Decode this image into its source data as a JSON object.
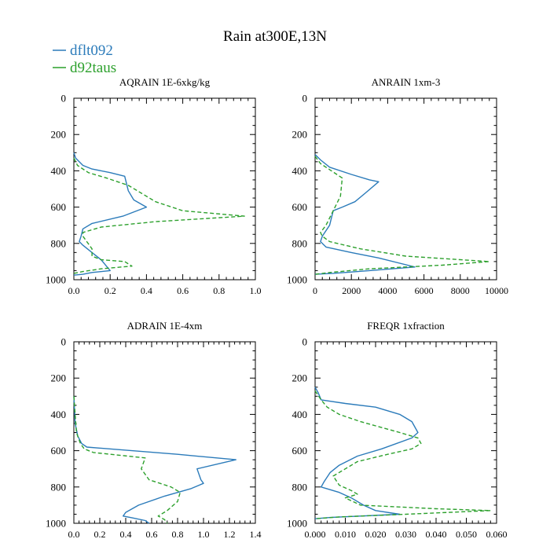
{
  "title": "Rain at300E,13N",
  "legend": [
    {
      "label": "dflt092",
      "color": "#2b7bba",
      "dash": "solid"
    },
    {
      "label": "d92taus",
      "color": "#2ca02c",
      "dash": "dashed"
    }
  ],
  "chart_data": [
    {
      "type": "line",
      "title": "AQRAIN  1E-6xkg/kg",
      "xlim": [
        0,
        1.0
      ],
      "ylim": [
        1000,
        0
      ],
      "xticks": [
        0.0,
        0.2,
        0.4,
        0.6,
        0.8,
        1.0
      ],
      "xtick_labels": [
        "0.0",
        "0.2",
        "0.4",
        "0.6",
        "0.8",
        "1.0"
      ],
      "yticks": [
        0,
        200,
        400,
        600,
        800,
        1000
      ],
      "ytick_labels": [
        "0",
        "200",
        "400",
        "600",
        "800",
        "1000"
      ],
      "series": [
        {
          "name": "dflt092",
          "color": "#2b7bba",
          "dash": "solid",
          "points": [
            [
              0,
              300
            ],
            [
              0.01,
              330
            ],
            [
              0.05,
              370
            ],
            [
              0.1,
              390
            ],
            [
              0.2,
              410
            ],
            [
              0.28,
              430
            ],
            [
              0.3,
              510
            ],
            [
              0.33,
              560
            ],
            [
              0.4,
              600
            ],
            [
              0.27,
              650
            ],
            [
              0.1,
              690
            ],
            [
              0.05,
              720
            ],
            [
              0.04,
              760
            ],
            [
              0.03,
              790
            ],
            [
              0.05,
              810
            ],
            [
              0.1,
              850
            ],
            [
              0.15,
              890
            ],
            [
              0.2,
              950
            ],
            [
              0.1,
              960
            ],
            [
              0.05,
              970
            ],
            [
              0,
              975
            ]
          ]
        },
        {
          "name": "d92taus",
          "color": "#2ca02c",
          "dash": "dashed",
          "points": [
            [
              0,
              330
            ],
            [
              0.02,
              370
            ],
            [
              0.08,
              410
            ],
            [
              0.18,
              440
            ],
            [
              0.3,
              480
            ],
            [
              0.45,
              570
            ],
            [
              0.6,
              620
            ],
            [
              0.94,
              650
            ],
            [
              0.45,
              680
            ],
            [
              0.15,
              710
            ],
            [
              0.05,
              740
            ],
            [
              0.05,
              760
            ],
            [
              0.1,
              830
            ],
            [
              0.1,
              870
            ],
            [
              0.15,
              890
            ],
            [
              0.28,
              900
            ],
            [
              0.32,
              925
            ],
            [
              0.15,
              940
            ],
            [
              0.05,
              955
            ],
            [
              0,
              965
            ]
          ]
        }
      ]
    },
    {
      "type": "line",
      "title": "ANRAIN  1xm-3",
      "xlim": [
        0,
        10000
      ],
      "ylim": [
        1000,
        0
      ],
      "xticks": [
        0,
        2000,
        4000,
        6000,
        8000,
        10000
      ],
      "xtick_labels": [
        "0",
        "2000",
        "4000",
        "6000",
        "8000",
        "10000"
      ],
      "yticks": [
        0,
        200,
        400,
        600,
        800,
        1000
      ],
      "ytick_labels": [
        "0",
        "200",
        "400",
        "600",
        "800",
        "1000"
      ],
      "series": [
        {
          "name": "dflt092",
          "color": "#2b7bba",
          "dash": "solid",
          "points": [
            [
              0,
              310
            ],
            [
              300,
              340
            ],
            [
              800,
              380
            ],
            [
              2000,
              420
            ],
            [
              3000,
              450
            ],
            [
              3500,
              460
            ],
            [
              2800,
              520
            ],
            [
              2200,
              570
            ],
            [
              1500,
              600
            ],
            [
              1000,
              620
            ],
            [
              800,
              700
            ],
            [
              400,
              760
            ],
            [
              300,
              790
            ],
            [
              600,
              820
            ],
            [
              2000,
              850
            ],
            [
              3500,
              880
            ],
            [
              5500,
              930
            ],
            [
              3000,
              950
            ],
            [
              1000,
              965
            ],
            [
              0,
              970
            ]
          ]
        },
        {
          "name": "d92taus",
          "color": "#2ca02c",
          "dash": "dashed",
          "points": [
            [
              0,
              320
            ],
            [
              300,
              360
            ],
            [
              900,
              400
            ],
            [
              1500,
              440
            ],
            [
              1400,
              540
            ],
            [
              1100,
              600
            ],
            [
              900,
              640
            ],
            [
              600,
              700
            ],
            [
              300,
              740
            ],
            [
              400,
              760
            ],
            [
              800,
              790
            ],
            [
              2500,
              830
            ],
            [
              5000,
              870
            ],
            [
              9600,
              900
            ],
            [
              7000,
              920
            ],
            [
              3000,
              940
            ],
            [
              800,
              960
            ],
            [
              0,
              970
            ]
          ]
        }
      ]
    },
    {
      "type": "line",
      "title": "ADRAIN  1E-4xm",
      "xlim": [
        0,
        1.4
      ],
      "ylim": [
        1000,
        0
      ],
      "xticks": [
        0.0,
        0.2,
        0.4,
        0.6,
        0.8,
        1.0,
        1.2,
        1.4
      ],
      "xtick_labels": [
        "0.0",
        "0.2",
        "0.4",
        "0.6",
        "0.8",
        "1.0",
        "1.2",
        "1.4"
      ],
      "yticks": [
        0,
        200,
        400,
        600,
        800,
        1000
      ],
      "ytick_labels": [
        "0",
        "200",
        "400",
        "600",
        "800",
        "1000"
      ],
      "series": [
        {
          "name": "dflt092",
          "color": "#2b7bba",
          "dash": "solid",
          "points": [
            [
              0,
              300
            ],
            [
              0.01,
              450
            ],
            [
              0.03,
              520
            ],
            [
              0.06,
              560
            ],
            [
              0.1,
              580
            ],
            [
              0.8,
              620
            ],
            [
              1.25,
              650
            ],
            [
              0.95,
              700
            ],
            [
              0.98,
              760
            ],
            [
              1.0,
              780
            ],
            [
              0.9,
              810
            ],
            [
              0.7,
              850
            ],
            [
              0.5,
              900
            ],
            [
              0.4,
              940
            ],
            [
              0.38,
              960
            ],
            [
              0.45,
              970
            ],
            [
              0.55,
              985
            ],
            [
              0.58,
              1000
            ]
          ]
        },
        {
          "name": "d92taus",
          "color": "#2ca02c",
          "dash": "dashed",
          "points": [
            [
              0,
              300
            ],
            [
              0.02,
              500
            ],
            [
              0.05,
              560
            ],
            [
              0.08,
              590
            ],
            [
              0.15,
              610
            ],
            [
              0.55,
              640
            ],
            [
              0.52,
              700
            ],
            [
              0.58,
              760
            ],
            [
              0.75,
              800
            ],
            [
              0.82,
              830
            ],
            [
              0.8,
              880
            ],
            [
              0.72,
              930
            ],
            [
              0.65,
              960
            ],
            [
              0.7,
              980
            ],
            [
              0.72,
              1000
            ]
          ]
        }
      ]
    },
    {
      "type": "line",
      "title": "FREQR  1xfraction",
      "xlim": [
        0,
        0.06
      ],
      "ylim": [
        1000,
        0
      ],
      "xticks": [
        0.0,
        0.01,
        0.02,
        0.03,
        0.04,
        0.05,
        0.06
      ],
      "xtick_labels": [
        "0.000",
        "0.010",
        "0.020",
        "0.030",
        "0.040",
        "0.050",
        "0.060"
      ],
      "yticks": [
        0,
        200,
        400,
        600,
        800,
        1000
      ],
      "ytick_labels": [
        "0",
        "200",
        "400",
        "600",
        "800",
        "1000"
      ],
      "series": [
        {
          "name": "dflt092",
          "color": "#2b7bba",
          "dash": "solid",
          "points": [
            [
              0,
              250
            ],
            [
              0.001,
              280
            ],
            [
              0.002,
              320
            ],
            [
              0.01,
              340
            ],
            [
              0.02,
              360
            ],
            [
              0.028,
              400
            ],
            [
              0.032,
              440
            ],
            [
              0.034,
              500
            ],
            [
              0.032,
              530
            ],
            [
              0.022,
              590
            ],
            [
              0.014,
              630
            ],
            [
              0.008,
              680
            ],
            [
              0.005,
              720
            ],
            [
              0.003,
              770
            ],
            [
              0.002,
              800
            ],
            [
              0.008,
              830
            ],
            [
              0.012,
              860
            ],
            [
              0.016,
              900
            ],
            [
              0.02,
              930
            ],
            [
              0.028,
              950
            ],
            [
              0.015,
              960
            ],
            [
              0.005,
              968
            ],
            [
              0,
              975
            ]
          ]
        },
        {
          "name": "d92taus",
          "color": "#2ca02c",
          "dash": "dashed",
          "points": [
            [
              0,
              270
            ],
            [
              0.002,
              320
            ],
            [
              0.004,
              360
            ],
            [
              0.008,
              400
            ],
            [
              0.015,
              440
            ],
            [
              0.028,
              500
            ],
            [
              0.034,
              530
            ],
            [
              0.035,
              560
            ],
            [
              0.032,
              590
            ],
            [
              0.024,
              620
            ],
            [
              0.014,
              660
            ],
            [
              0.01,
              700
            ],
            [
              0.006,
              740
            ],
            [
              0.008,
              790
            ],
            [
              0.012,
              820
            ],
            [
              0.014,
              840
            ],
            [
              0.01,
              860
            ],
            [
              0.015,
              900
            ],
            [
              0.04,
              920
            ],
            [
              0.058,
              930
            ],
            [
              0.03,
              950
            ],
            [
              0.008,
              965
            ],
            [
              0,
              975
            ]
          ]
        }
      ]
    }
  ]
}
